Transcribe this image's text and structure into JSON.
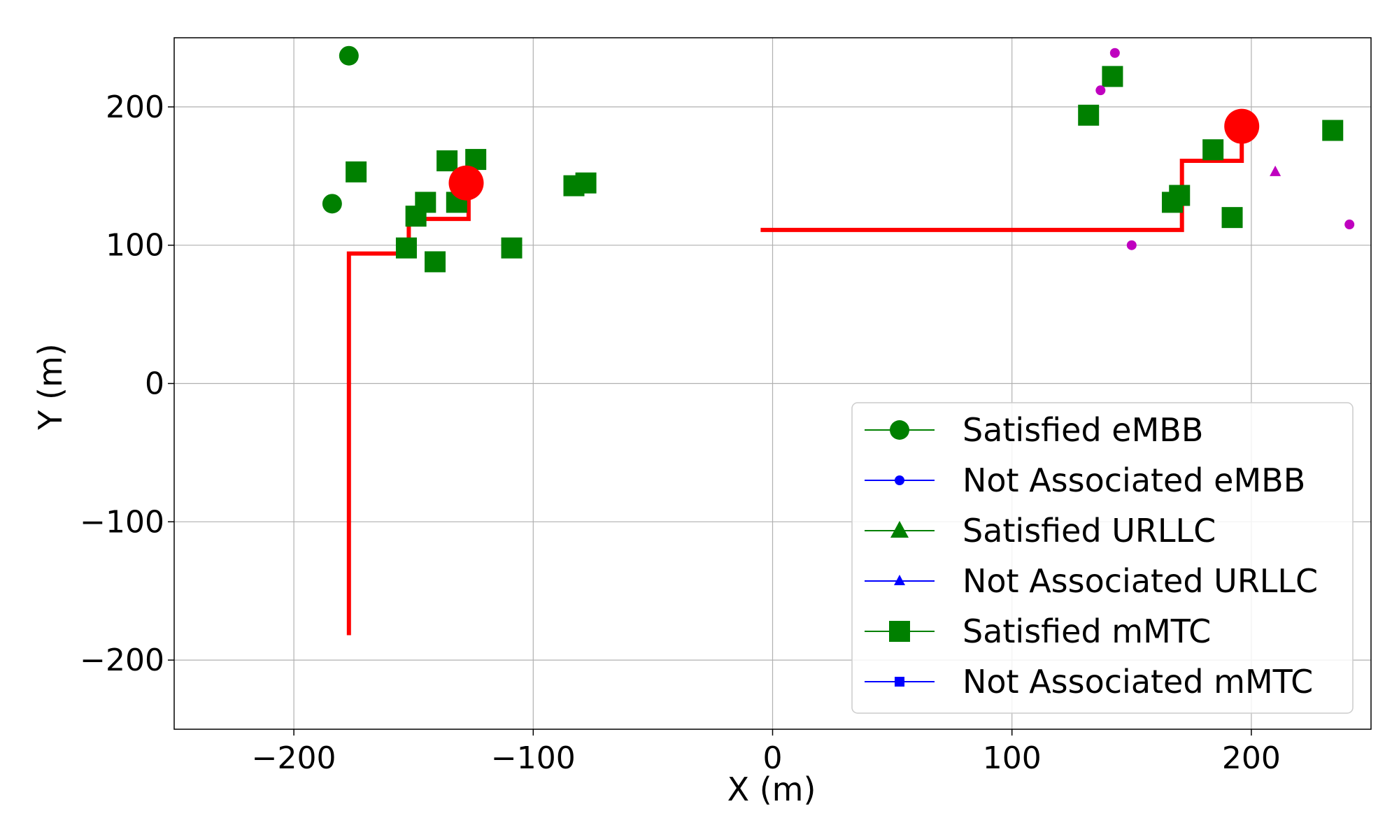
{
  "chart_data": {
    "type": "scatter",
    "xlabel": "X (m)",
    "ylabel": "Y (m)",
    "xlim": [
      -250,
      250
    ],
    "ylim": [
      -250,
      250
    ],
    "x_ticks": [
      -200,
      -100,
      0,
      100,
      200
    ],
    "y_ticks": [
      -200,
      -100,
      0,
      100,
      200
    ],
    "x_tick_labels": [
      "−200",
      "−100",
      "0",
      "100",
      "200"
    ],
    "y_tick_labels": [
      "−200",
      "−100",
      "0",
      "100",
      "200"
    ],
    "grid": true,
    "legend_position": "lower-right",
    "colors": {
      "satisfied": "#008000",
      "not_associated": "#0000ff",
      "other_users": "#bf00bf",
      "uav": "#ff0000"
    },
    "legend": [
      {
        "label": "Satisfied eMBB",
        "marker": "circle",
        "color": "#008000"
      },
      {
        "label": "Not Associated eMBB",
        "marker": "circle-small",
        "color": "#0000ff"
      },
      {
        "label": "Satisfied URLLC",
        "marker": "triangle",
        "color": "#008000"
      },
      {
        "label": "Not Associated URLLC",
        "marker": "triangle-small",
        "color": "#0000ff"
      },
      {
        "label": "Satisfied mMTC",
        "marker": "square",
        "color": "#008000"
      },
      {
        "label": "Not Associated mMTC",
        "marker": "square-small",
        "color": "#0000ff"
      }
    ],
    "series": [
      {
        "name": "Satisfied eMBB",
        "marker": "circle",
        "color": "#008000",
        "points": [
          [
            -177,
            237
          ],
          [
            -184,
            130
          ]
        ]
      },
      {
        "name": "Satisfied mMTC",
        "marker": "square",
        "color": "#008000",
        "points": [
          [
            -174,
            153
          ],
          [
            -136,
            161
          ],
          [
            -124,
            162
          ],
          [
            -145,
            131
          ],
          [
            -149,
            121
          ],
          [
            -132,
            131
          ],
          [
            -153,
            98
          ],
          [
            -141,
            88
          ],
          [
            -109,
            98
          ],
          [
            -83,
            143
          ],
          [
            -78,
            145
          ],
          [
            132,
            194
          ],
          [
            142,
            222
          ],
          [
            167,
            131
          ],
          [
            170,
            136
          ],
          [
            184,
            169
          ],
          [
            192,
            120
          ],
          [
            234,
            183
          ]
        ]
      },
      {
        "marker": "circle-small",
        "color": "#bf00bf",
        "points": [
          [
            143,
            239
          ],
          [
            137,
            212
          ],
          [
            150,
            100
          ],
          [
            241,
            115
          ]
        ]
      },
      {
        "marker": "triangle-small",
        "color": "#bf00bf",
        "points": [
          [
            210,
            153
          ]
        ]
      },
      {
        "marker": "circle-large",
        "color": "#ff0000",
        "points": [
          [
            -128,
            145
          ],
          [
            196,
            186
          ]
        ]
      }
    ],
    "trajectories": [
      {
        "color": "#ff0000",
        "points": [
          [
            -177,
            -182
          ],
          [
            -177,
            94
          ],
          [
            -152,
            94
          ],
          [
            -152,
            119
          ],
          [
            -127,
            119
          ],
          [
            -127,
            145
          ]
        ]
      },
      {
        "color": "#ff0000",
        "points": [
          [
            -5,
            111
          ],
          [
            171,
            111
          ],
          [
            171,
            161
          ],
          [
            196,
            161
          ],
          [
            196,
            186
          ]
        ]
      }
    ]
  }
}
